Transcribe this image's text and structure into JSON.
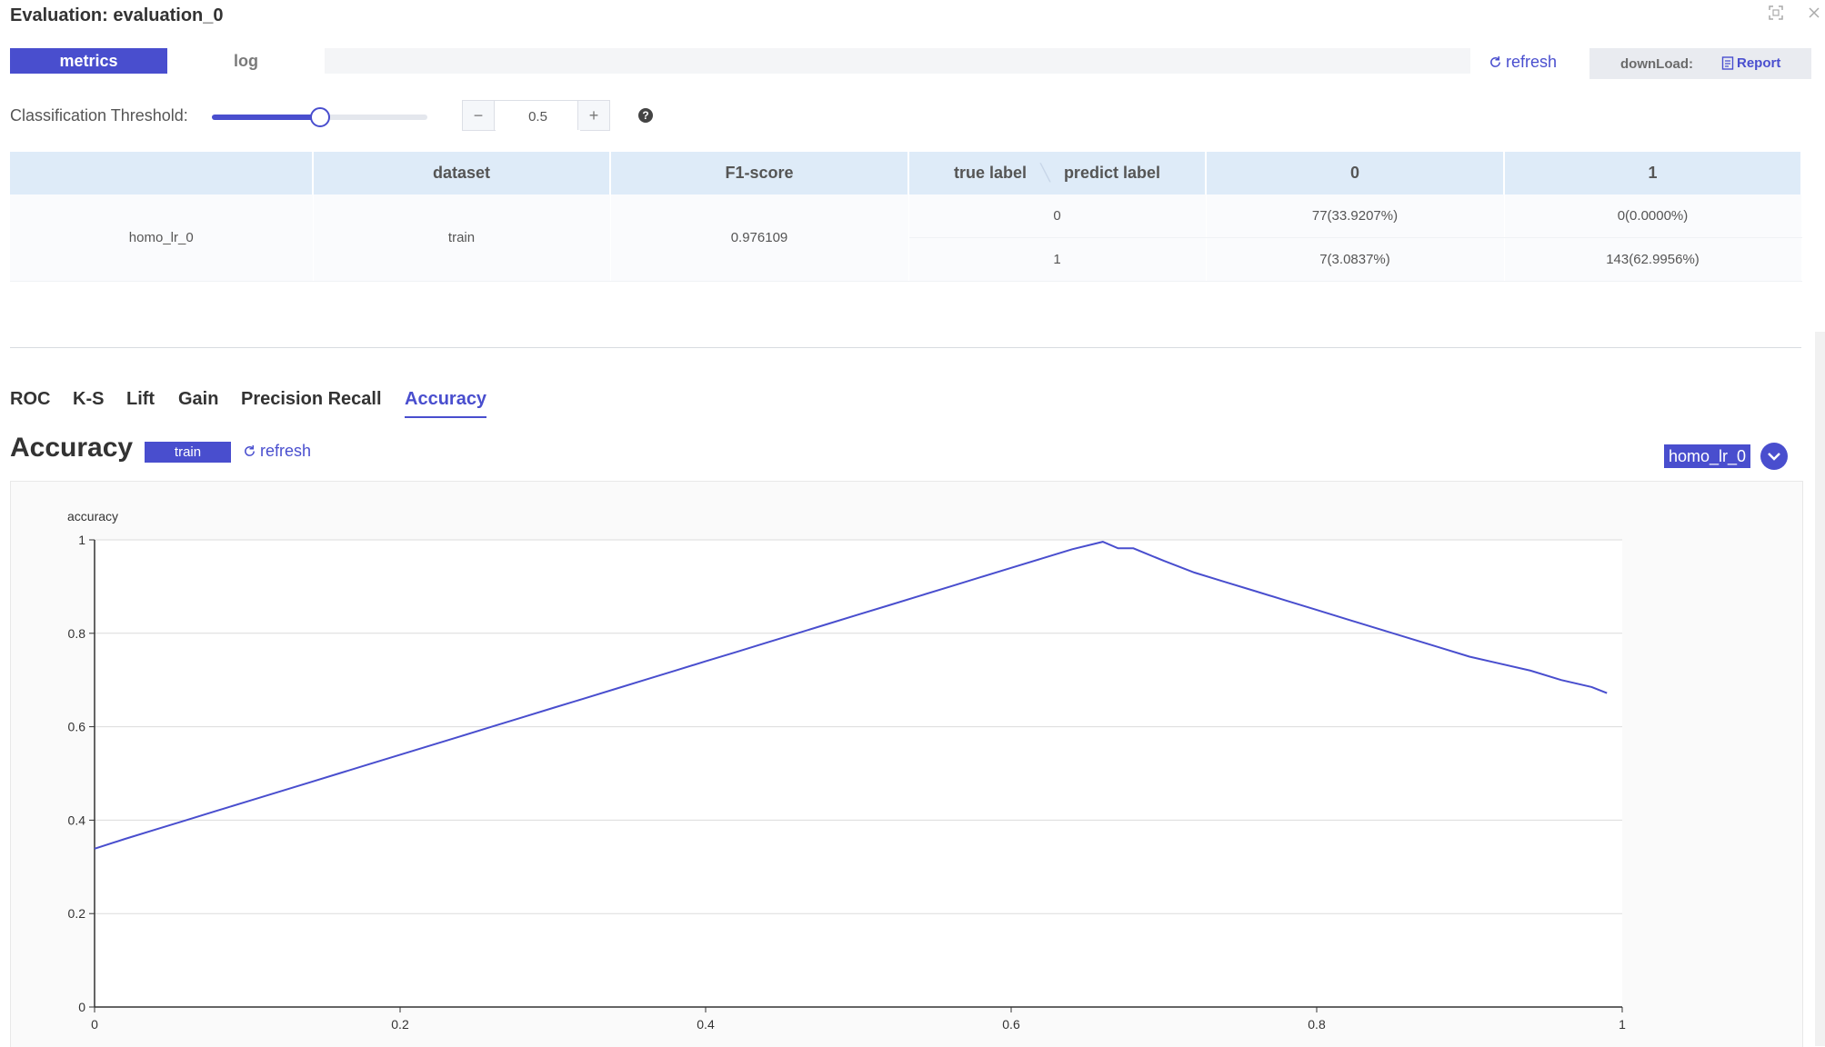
{
  "window": {
    "title": "Evaluation: evaluation_0",
    "icons": [
      "fullscreen-icon",
      "close-icon"
    ]
  },
  "tabs": [
    {
      "label": "metrics",
      "active": true
    },
    {
      "label": "log",
      "active": false
    }
  ],
  "toolbar": {
    "refresh_label": "refresh",
    "download_label": "downLoad:",
    "report_label": "Report"
  },
  "threshold": {
    "label": "Classification Threshold:",
    "value": "0.5",
    "slider_fraction": 0.5
  },
  "confusion_table": {
    "headers": {
      "blank": "",
      "dataset": "dataset",
      "f1": "F1-score",
      "true_label": "true label",
      "predict_label": "predict label",
      "col0": "0",
      "col1": "1"
    },
    "model": "homo_lr_0",
    "dataset": "train",
    "f1": "0.976109",
    "rows": [
      {
        "label": "0",
        "c0": "77(33.9207%)",
        "c1": "0(0.0000%)"
      },
      {
        "label": "1",
        "c0": "7(3.0837%)",
        "c1": "143(62.9956%)"
      }
    ]
  },
  "metric_tabs": [
    {
      "label": "ROC",
      "active": false
    },
    {
      "label": "K-S",
      "active": false
    },
    {
      "label": "Lift",
      "active": false
    },
    {
      "label": "Gain",
      "active": false
    },
    {
      "label": "Precision Recall",
      "active": false
    },
    {
      "label": "Accuracy",
      "active": true
    }
  ],
  "section": {
    "title": "Accuracy",
    "badge": "train",
    "refresh_label": "refresh",
    "model_tag": "homo_lr_0"
  },
  "colors": {
    "accent": "#494ece"
  },
  "chart_data": {
    "type": "line",
    "title": "",
    "xlabel": "",
    "ylabel": "accuracy",
    "xlim": [
      0,
      1
    ],
    "ylim": [
      0,
      1
    ],
    "x_ticks": [
      "0",
      "0.2",
      "0.4",
      "0.6",
      "0.8",
      "1"
    ],
    "y_ticks": [
      "0",
      "0.2",
      "0.4",
      "0.6",
      "0.8",
      "1"
    ],
    "grid": true,
    "series": [
      {
        "color": "#494ece",
        "x": [
          0,
          0.02,
          0.04,
          0.06,
          0.08,
          0.1,
          0.12,
          0.14,
          0.16,
          0.18,
          0.2,
          0.22,
          0.24,
          0.26,
          0.28,
          0.3,
          0.32,
          0.34,
          0.36,
          0.38,
          0.4,
          0.42,
          0.44,
          0.46,
          0.48,
          0.5,
          0.52,
          0.54,
          0.56,
          0.58,
          0.6,
          0.62,
          0.64,
          0.66,
          0.67,
          0.68,
          0.7,
          0.72,
          0.74,
          0.76,
          0.78,
          0.8,
          0.82,
          0.84,
          0.86,
          0.88,
          0.9,
          0.92,
          0.94,
          0.96,
          0.98,
          0.99
        ],
        "y": [
          0.339,
          0.36,
          0.38,
          0.4,
          0.42,
          0.44,
          0.46,
          0.48,
          0.5,
          0.52,
          0.54,
          0.56,
          0.58,
          0.6,
          0.62,
          0.64,
          0.66,
          0.68,
          0.7,
          0.72,
          0.74,
          0.76,
          0.78,
          0.8,
          0.82,
          0.84,
          0.86,
          0.88,
          0.9,
          0.92,
          0.94,
          0.96,
          0.98,
          0.996,
          0.982,
          0.982,
          0.955,
          0.93,
          0.91,
          0.89,
          0.87,
          0.85,
          0.83,
          0.81,
          0.79,
          0.77,
          0.75,
          0.735,
          0.72,
          0.7,
          0.685,
          0.672
        ]
      }
    ]
  }
}
